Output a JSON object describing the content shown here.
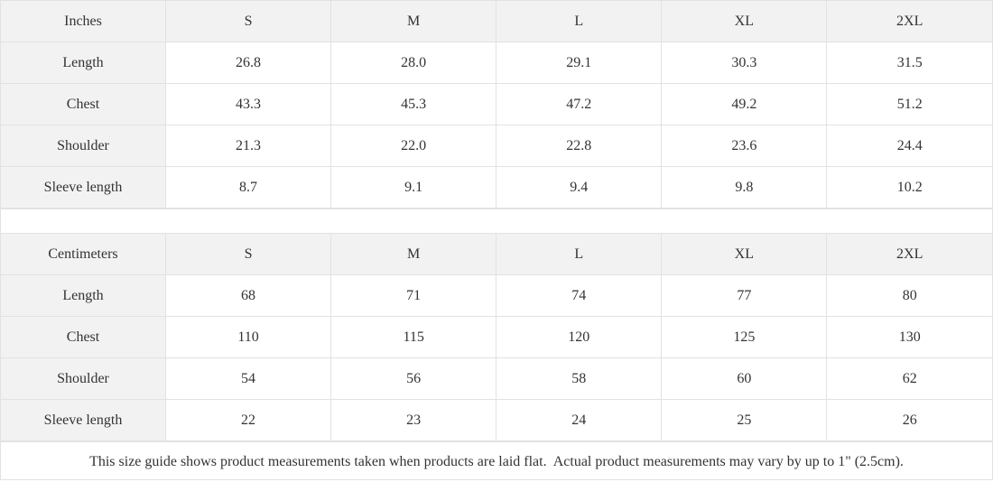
{
  "tables": [
    {
      "header": [
        "Inches",
        "S",
        "M",
        "L",
        "XL",
        "2XL"
      ],
      "rows": [
        [
          "Length",
          "26.8",
          "28.0",
          "29.1",
          "30.3",
          "31.5"
        ],
        [
          "Chest",
          "43.3",
          "45.3",
          "47.2",
          "49.2",
          "51.2"
        ],
        [
          "Shoulder",
          "21.3",
          "22.0",
          "22.8",
          "23.6",
          "24.4"
        ],
        [
          "Sleeve length",
          "8.7",
          "9.1",
          "9.4",
          "9.8",
          "10.2"
        ]
      ]
    },
    {
      "header": [
        "Centimeters",
        "S",
        "M",
        "L",
        "XL",
        "2XL"
      ],
      "rows": [
        [
          "Length",
          "68",
          "71",
          "74",
          "77",
          "80"
        ],
        [
          "Chest",
          "110",
          "115",
          "120",
          "125",
          "130"
        ],
        [
          "Shoulder",
          "54",
          "56",
          "58",
          "60",
          "62"
        ],
        [
          "Sleeve length",
          "22",
          "23",
          "24",
          "25",
          "26"
        ]
      ]
    }
  ],
  "footer": "This size guide shows product measurements taken when products are laid flat.  Actual product measurements may vary by up to 1\" (2.5cm)."
}
